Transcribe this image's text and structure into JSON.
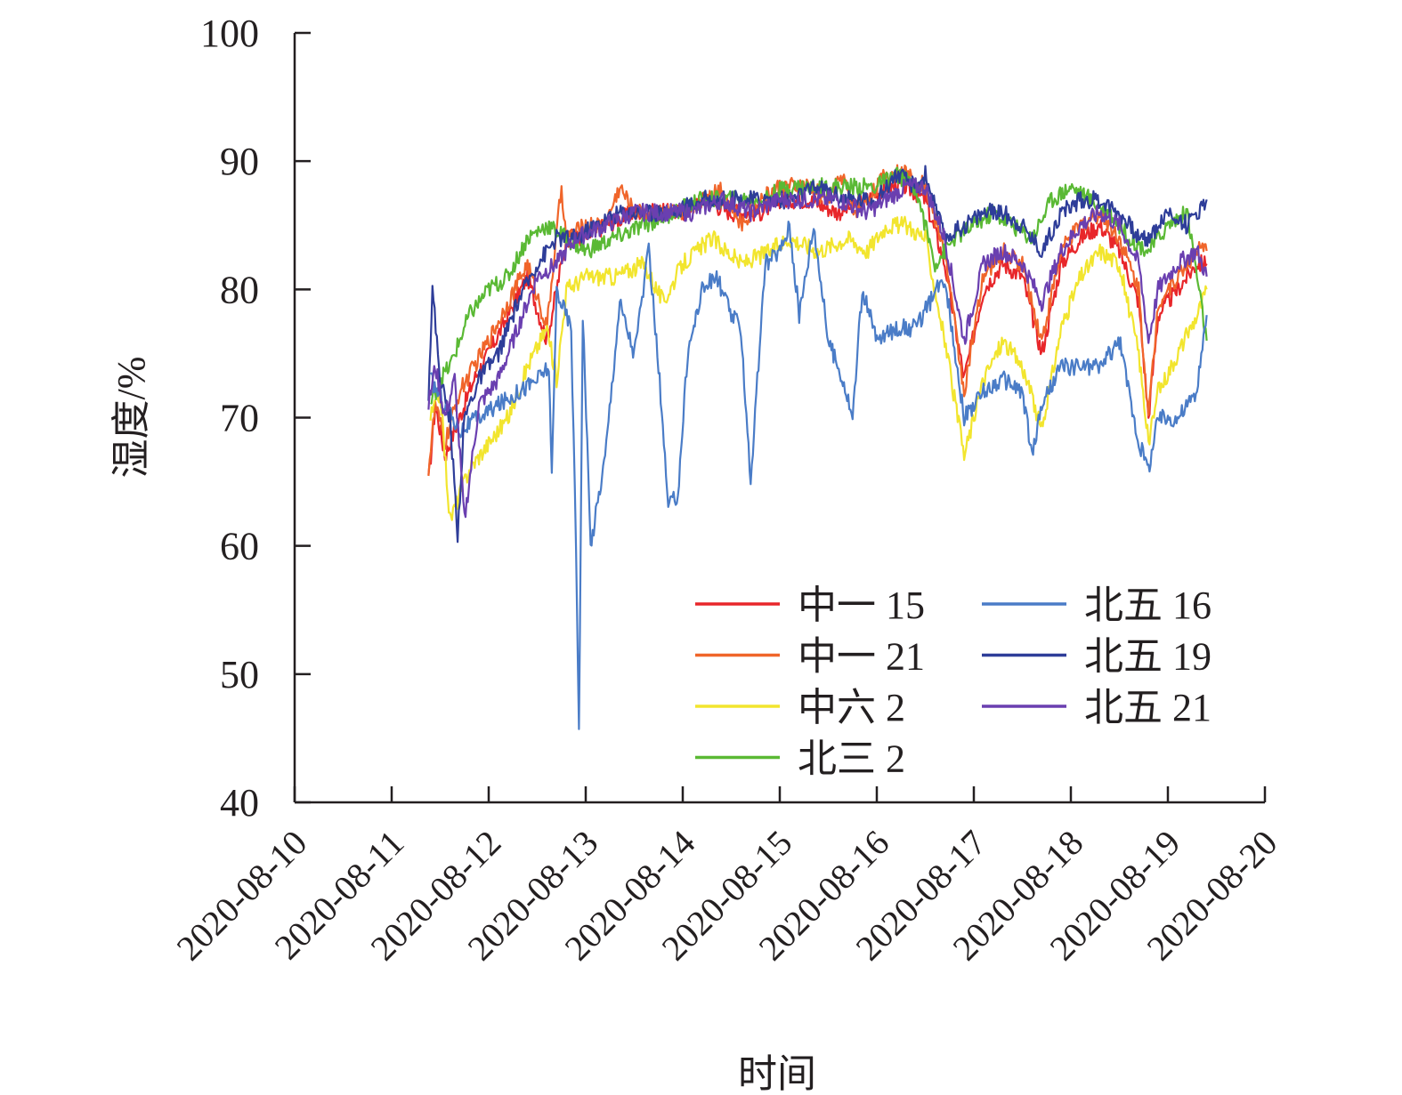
{
  "chart_data": {
    "type": "line",
    "title": "",
    "xlabel": "时间",
    "ylabel": "湿度/%",
    "ylim": [
      40,
      100
    ],
    "xlim_days": [
      0,
      10
    ],
    "y_ticks": [
      40,
      50,
      60,
      70,
      80,
      90,
      100
    ],
    "x_tick_labels": [
      "2020-08-10",
      "2020-08-11",
      "2020-08-12",
      "2020-08-13",
      "2020-08-14",
      "2020-08-15",
      "2020-08-16",
      "2020-08-17",
      "2020-08-18",
      "2020-08-19",
      "2020-08-20"
    ],
    "x_unit_note": "x values are days since 2020-08-10 00:00",
    "legend_position": "lower-right",
    "series": [
      {
        "name": "中一 15",
        "color": "#e8262a",
        "x": [
          1.38,
          1.45,
          1.55,
          1.7,
          1.85,
          2.0,
          2.2,
          2.4,
          2.6,
          2.8,
          3.0,
          3.2,
          3.5,
          3.8,
          4.0,
          4.2,
          4.5,
          4.8,
          5.0,
          5.3,
          5.6,
          5.9,
          6.1,
          6.3,
          6.5,
          6.7,
          6.9,
          7.1,
          7.3,
          7.5,
          7.7,
          7.9,
          8.1,
          8.3,
          8.5,
          8.7,
          8.8,
          8.9,
          9.1,
          9.3,
          9.4
        ],
        "y": [
          65,
          71,
          67,
          70,
          73,
          75,
          78,
          81,
          76,
          84,
          84,
          85,
          86,
          86,
          86,
          87,
          86,
          86,
          87,
          87,
          86,
          87,
          88,
          88,
          87,
          82,
          73,
          80,
          82,
          81,
          75,
          82,
          84,
          85,
          83,
          79,
          70,
          78,
          80,
          82,
          82
        ]
      },
      {
        "name": "中一 21",
        "color": "#f0652a",
        "x": [
          1.38,
          1.45,
          1.55,
          1.7,
          1.85,
          2.0,
          2.2,
          2.4,
          2.6,
          2.75,
          2.8,
          3.0,
          3.2,
          3.35,
          3.5,
          3.8,
          4.0,
          4.2,
          4.4,
          4.6,
          4.8,
          5.0,
          5.3,
          5.5,
          5.65,
          5.75,
          5.9,
          6.1,
          6.3,
          6.5,
          6.7,
          6.9,
          7.1,
          7.3,
          7.5,
          7.7,
          7.9,
          8.1,
          8.3,
          8.5,
          8.7,
          8.8,
          8.9,
          9.1,
          9.3,
          9.4
        ],
        "y": [
          66,
          71,
          68,
          72,
          74,
          76,
          79,
          82,
          77,
          88,
          84,
          85,
          85,
          88,
          86,
          86,
          86,
          87,
          88,
          85,
          87,
          88,
          88,
          87,
          89,
          86,
          87,
          89,
          89,
          88,
          83,
          72,
          81,
          83,
          82,
          76,
          83,
          85,
          86,
          84,
          80,
          70,
          79,
          81,
          83,
          83
        ]
      },
      {
        "name": "中六 2",
        "color": "#f2e52e",
        "x": [
          1.4,
          1.5,
          1.6,
          1.8,
          2.0,
          2.2,
          2.4,
          2.6,
          2.7,
          2.8,
          3.0,
          3.3,
          3.6,
          3.8,
          4.0,
          4.3,
          4.6,
          4.9,
          5.1,
          5.4,
          5.7,
          5.9,
          6.1,
          6.3,
          6.5,
          6.7,
          6.9,
          7.1,
          7.3,
          7.5,
          7.7,
          7.9,
          8.1,
          8.3,
          8.5,
          8.7,
          8.8,
          8.9,
          9.1,
          9.3,
          9.4
        ],
        "y": [
          70,
          72,
          62,
          66,
          68,
          70,
          74,
          77,
          73,
          80,
          81,
          81,
          82,
          79,
          82,
          84,
          82,
          83,
          84,
          83,
          84,
          83,
          85,
          85,
          84,
          76,
          67,
          73,
          76,
          74,
          69,
          77,
          81,
          83,
          82,
          75,
          68,
          72,
          75,
          78,
          80
        ]
      },
      {
        "name": "北三 2",
        "color": "#5ab934",
        "x": [
          1.4,
          1.5,
          1.6,
          1.8,
          2.0,
          2.2,
          2.4,
          2.6,
          2.8,
          3.0,
          3.3,
          3.6,
          3.9,
          4.2,
          4.5,
          4.8,
          5.1,
          5.4,
          5.7,
          6.0,
          6.2,
          6.4,
          6.6,
          6.8,
          7.0,
          7.2,
          7.4,
          7.6,
          7.8,
          8.0,
          8.2,
          8.4,
          8.6,
          8.8,
          9.0,
          9.2,
          9.4
        ],
        "y": [
          71,
          73,
          74,
          78,
          80,
          81,
          84,
          85,
          84,
          83,
          84,
          85,
          86,
          87,
          87,
          87,
          88,
          88,
          88,
          88,
          89,
          88,
          82,
          84,
          85,
          86,
          85,
          84,
          87,
          88,
          87,
          86,
          84,
          83,
          85,
          86,
          76
        ]
      },
      {
        "name": "北五 16",
        "color": "#4a7cc7",
        "x": [
          1.4,
          1.55,
          1.7,
          1.9,
          2.1,
          2.3,
          2.5,
          2.62,
          2.65,
          2.7,
          2.85,
          2.9,
          2.93,
          2.97,
          3.05,
          3.2,
          3.35,
          3.5,
          3.65,
          3.75,
          3.85,
          3.95,
          4.05,
          4.2,
          4.35,
          4.5,
          4.6,
          4.7,
          4.85,
          5.0,
          5.1,
          5.2,
          5.35,
          5.5,
          5.65,
          5.75,
          5.85,
          6.0,
          6.2,
          6.4,
          6.55,
          6.7,
          6.9,
          7.1,
          7.3,
          7.5,
          7.6,
          7.7,
          7.9,
          8.1,
          8.3,
          8.5,
          8.7,
          8.8,
          8.9,
          9.1,
          9.3,
          9.4
        ],
        "y": [
          73,
          71,
          69,
          70,
          71,
          72,
          73,
          74,
          65,
          80,
          77,
          60,
          46,
          78,
          60,
          67,
          79,
          75,
          83,
          74,
          63,
          64,
          75,
          80,
          81,
          78,
          77,
          65,
          82,
          83,
          85,
          78,
          85,
          76,
          73,
          70,
          80,
          76,
          77,
          77,
          79,
          81,
          70,
          72,
          73,
          72,
          67,
          71,
          74,
          74,
          74,
          76,
          68,
          66,
          70,
          70,
          72,
          78
        ]
      },
      {
        "name": "北五 19",
        "color": "#2e3d99",
        "x": [
          1.38,
          1.42,
          1.5,
          1.6,
          1.68,
          1.75,
          1.9,
          2.1,
          2.3,
          2.5,
          2.7,
          2.9,
          3.1,
          3.35,
          3.6,
          3.9,
          4.2,
          4.5,
          4.8,
          5.1,
          5.4,
          5.7,
          6.0,
          6.2,
          6.4,
          6.5,
          6.7,
          6.9,
          7.1,
          7.3,
          7.5,
          7.7,
          7.9,
          8.1,
          8.3,
          8.5,
          8.7,
          8.8,
          9.0,
          9.2,
          9.4
        ],
        "y": [
          72,
          80,
          73,
          70,
          61,
          70,
          73,
          75,
          79,
          82,
          84,
          84,
          85,
          86,
          86,
          86,
          87,
          87,
          87,
          87,
          88,
          87,
          87,
          89,
          88,
          89,
          84,
          85,
          86,
          86,
          85,
          83,
          86,
          87,
          87,
          86,
          84,
          84,
          86,
          85,
          87
        ]
      },
      {
        "name": "北五 21",
        "color": "#6a3fb0",
        "x": [
          1.38,
          1.45,
          1.55,
          1.65,
          1.75,
          1.9,
          2.1,
          2.3,
          2.5,
          2.7,
          2.9,
          3.2,
          3.5,
          3.8,
          4.1,
          4.4,
          4.7,
          5.0,
          5.3,
          5.6,
          5.9,
          6.1,
          6.3,
          6.5,
          6.7,
          6.9,
          7.1,
          7.3,
          7.5,
          7.7,
          7.9,
          8.1,
          8.3,
          8.5,
          8.7,
          8.8,
          8.9,
          9.1,
          9.3,
          9.4
        ],
        "y": [
          71,
          74,
          70,
          73,
          62,
          71,
          73,
          77,
          81,
          82,
          84,
          85,
          86,
          86,
          86,
          87,
          86,
          87,
          87,
          87,
          86,
          87,
          88,
          88,
          84,
          76,
          82,
          83,
          82,
          79,
          83,
          85,
          86,
          85,
          82,
          76,
          80,
          82,
          83,
          81
        ]
      }
    ]
  }
}
